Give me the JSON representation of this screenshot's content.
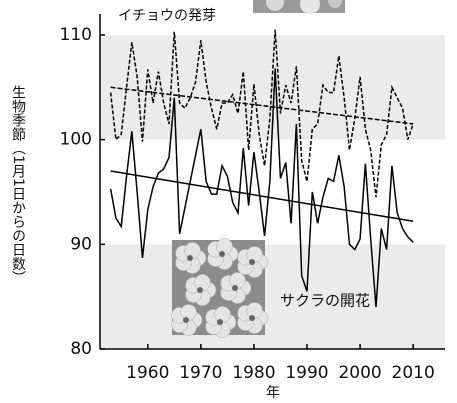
{
  "chart_data": {
    "type": "line",
    "y_label": "生物季節（1月1日からの日数）",
    "x_label": "年",
    "x": [
      1953,
      1954,
      1955,
      1956,
      1957,
      1958,
      1959,
      1960,
      1961,
      1962,
      1963,
      1964,
      1965,
      1966,
      1967,
      1968,
      1969,
      1970,
      1971,
      1972,
      1973,
      1974,
      1975,
      1976,
      1977,
      1978,
      1979,
      1980,
      1981,
      1982,
      1983,
      1984,
      1985,
      1986,
      1987,
      1988,
      1989,
      1990,
      1991,
      1992,
      1993,
      1994,
      1995,
      1996,
      1997,
      1998,
      1999,
      2000,
      2001,
      2002,
      2003,
      2004,
      2005,
      2006,
      2007,
      2008,
      2009,
      2010
    ],
    "series": [
      {
        "name": "イチョウの発芽",
        "color": "#000000",
        "dashed": true,
        "values": [
          104.5,
          100,
          100.5,
          105,
          109.3,
          106,
          99.8,
          106.7,
          103.5,
          106.5,
          103.5,
          101.5,
          110.3,
          103.5,
          103,
          104,
          105.5,
          109.5,
          105.5,
          103,
          101,
          103.5,
          103.5,
          104.3,
          102.5,
          106.5,
          99,
          105.3,
          100.5,
          97.5,
          102,
          110.5,
          102.5,
          105.2,
          103.5,
          107,
          98,
          96,
          101,
          101.5,
          105.2,
          104.5,
          104.5,
          108,
          104,
          99,
          102,
          106,
          101,
          99,
          94.5,
          99.5,
          100.5,
          105,
          104,
          103,
          100,
          101.5
        ],
        "trend": {
          "x": [
            1953,
            2010
          ],
          "values": [
            105,
            101.5
          ]
        }
      },
      {
        "name": "サクラの開花",
        "color": "#000000",
        "dashed": false,
        "values": [
          95.3,
          92.5,
          91.7,
          96.5,
          100.8,
          95,
          88.7,
          93.3,
          95.5,
          96.8,
          97.2,
          98.3,
          104,
          91,
          93.5,
          96,
          98.5,
          101,
          96,
          94.8,
          94.8,
          97.5,
          96.5,
          94,
          93,
          99.2,
          93.7,
          98.8,
          95,
          90.8,
          96,
          106.8,
          96.3,
          97.8,
          92,
          101.5,
          87,
          85.5,
          95,
          92,
          94.5,
          96.3,
          96,
          98.5,
          95.5,
          90,
          89.5,
          90.5,
          97.7,
          90.5,
          84,
          91.5,
          89.5,
          97.5,
          93,
          91.5,
          90.7,
          90.2
        ],
        "trend": {
          "x": [
            1953,
            2010
          ],
          "values": [
            97,
            92.2
          ]
        }
      }
    ],
    "xlim": [
      1951,
      2016
    ],
    "xticks": [
      1960,
      1970,
      1980,
      1990,
      2000,
      2010
    ],
    "ylim": [
      80,
      112
    ],
    "yticks": [
      80,
      90,
      100,
      110
    ],
    "shaded_bands": [
      [
        80,
        90
      ],
      [
        100,
        110
      ]
    ],
    "band_color": "#ebebeb"
  }
}
